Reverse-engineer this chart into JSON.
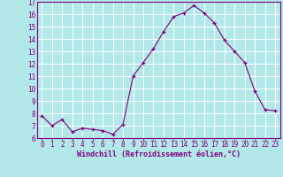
{
  "x": [
    0,
    1,
    2,
    3,
    4,
    5,
    6,
    7,
    8,
    9,
    10,
    11,
    12,
    13,
    14,
    15,
    16,
    17,
    18,
    19,
    20,
    21,
    22,
    23
  ],
  "y": [
    7.8,
    7.0,
    7.5,
    6.5,
    6.8,
    6.7,
    6.6,
    6.3,
    7.1,
    11.0,
    12.1,
    13.2,
    14.6,
    15.8,
    16.1,
    16.7,
    16.1,
    15.3,
    13.9,
    13.0,
    12.1,
    9.8,
    8.3,
    8.2
  ],
  "line_color": "#800080",
  "marker": "+",
  "marker_color": "#800080",
  "bg_color": "#b2e8e8",
  "grid_color": "#ffffff",
  "xlabel": "Windchill (Refroidissement éolien,°C)",
  "xlabel_color": "#800080",
  "tick_color": "#800080",
  "spine_color": "#800080",
  "ylim": [
    6,
    17
  ],
  "xlim": [
    -0.5,
    23.5
  ],
  "yticks": [
    6,
    7,
    8,
    9,
    10,
    11,
    12,
    13,
    14,
    15,
    16,
    17
  ],
  "xticks": [
    0,
    1,
    2,
    3,
    4,
    5,
    6,
    7,
    8,
    9,
    10,
    11,
    12,
    13,
    14,
    15,
    16,
    17,
    18,
    19,
    20,
    21,
    22,
    23
  ],
  "xtick_labels": [
    "0",
    "1",
    "2",
    "3",
    "4",
    "5",
    "6",
    "7",
    "8",
    "9",
    "10",
    "11",
    "12",
    "13",
    "14",
    "15",
    "16",
    "17",
    "18",
    "19",
    "20",
    "21",
    "22",
    "23"
  ],
  "tick_fontsize": 5.5,
  "xlabel_fontsize": 6.0
}
